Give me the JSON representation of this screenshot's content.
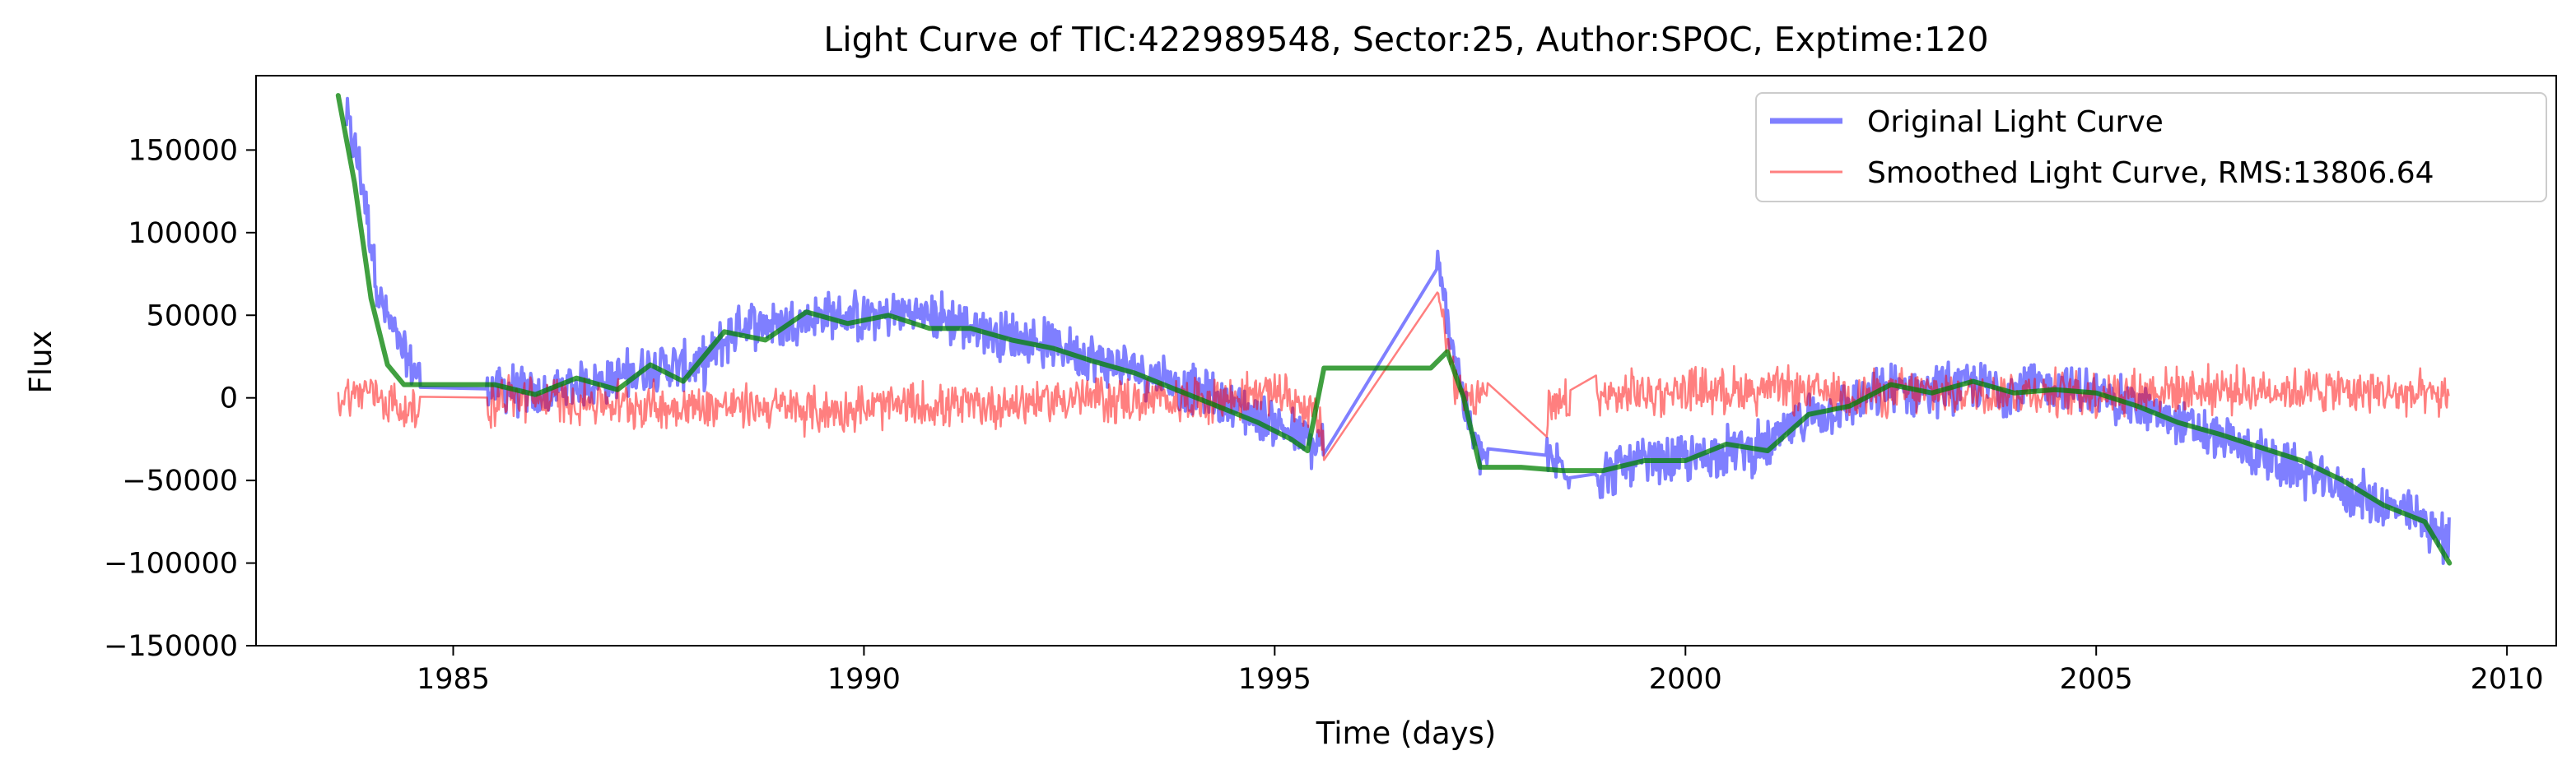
{
  "chart_data": {
    "type": "line",
    "title": "Light Curve of TIC:422989548, Sector:25, Author:SPOC, Exptime:120",
    "xlabel": "Time (days)",
    "ylabel": "Flux",
    "xlim": [
      1982.6,
      2010.6
    ],
    "ylim": [
      -150000,
      195000
    ],
    "x_ticks": [
      1985,
      1990,
      1995,
      2000,
      2005,
      2010
    ],
    "y_ticks": [
      -150000,
      -100000,
      -50000,
      0,
      50000,
      100000,
      150000
    ],
    "x_tick_labels": [
      "1985",
      "1990",
      "1995",
      "2000",
      "2005",
      "2010"
    ],
    "y_tick_labels": [
      "−150000",
      "−100000",
      "−50000",
      "0",
      "50000",
      "100000",
      "150000"
    ],
    "grid": false,
    "legend_position": "top-right",
    "series": [
      {
        "name": "Original Light Curve",
        "color": "#0000ff",
        "opacity": 0.5,
        "style": "noisy",
        "x": [
          1983.7,
          1983.9,
          1984.1,
          1984.4,
          1984.6,
          1985.0,
          1985.4,
          1985.8,
          1986.0,
          1986.5,
          1987.0,
          1987.5,
          1988.0,
          1988.5,
          1989.0,
          1989.5,
          1990.0,
          1990.5,
          1991.0,
          1991.5,
          1992.0,
          1992.5,
          1993.0,
          1993.5,
          1994.0,
          1994.5,
          1995.0,
          1995.5,
          1995.6,
          1996.97,
          1997.2,
          1997.4,
          1997.6,
          1998.0,
          1998.5,
          1998.9,
          1999.2,
          1999.5,
          2000.0,
          2000.5,
          2001.0,
          2001.5,
          2002.0,
          2002.5,
          2003.0,
          2003.5,
          2004.0,
          2004.5,
          2005.0,
          2005.5,
          2006.0,
          2006.5,
          2007.0,
          2007.5,
          2008.0,
          2008.5,
          2009.0,
          2009.3
        ],
        "y": [
          170000,
          130000,
          60000,
          25000,
          12000,
          8000,
          6000,
          5000,
          0,
          8000,
          12000,
          20000,
          18000,
          45000,
          45000,
          50000,
          48000,
          52000,
          48000,
          40000,
          35000,
          30000,
          20000,
          15000,
          5000,
          -5000,
          -15000,
          -30000,
          -25000,
          80000,
          25000,
          -25000,
          -38000,
          -38000,
          -40000,
          -48000,
          -42000,
          -40000,
          -38000,
          -32000,
          -30000,
          -10000,
          -5000,
          5000,
          5000,
          8000,
          5000,
          8000,
          2000,
          -5000,
          -15000,
          -25000,
          -35000,
          -45000,
          -55000,
          -65000,
          -75000,
          -88000
        ],
        "noise_amplitude": 18000
      },
      {
        "name": "Smoothed Light Curve, RMS:13806.64",
        "color": "#ff0000",
        "opacity": 0.5,
        "style": "noisy",
        "x": [
          1983.6,
          1984.0,
          1984.4,
          1985.4,
          1985.6,
          1986.5,
          1987.5,
          1988.5,
          1989.5,
          1990.5,
          1991.5,
          1992.5,
          1993.5,
          1994.5,
          1995.0,
          1995.5,
          1995.6,
          1996.97,
          1997.2,
          1997.5,
          1998.3,
          1998.5,
          1998.9,
          1999.0,
          2000.0,
          2001.0,
          2002.0,
          2003.0,
          2004.0,
          2005.0,
          2006.0,
          2007.0,
          2008.0,
          2009.3
        ],
        "y": [
          0,
          5000,
          -8000,
          -5000,
          0,
          -2000,
          -5000,
          -5000,
          -8000,
          -5000,
          -5000,
          0,
          -2000,
          0,
          5000,
          -10000,
          -30000,
          70000,
          5000,
          3000,
          -10000,
          -5000,
          0,
          0,
          5000,
          5000,
          3000,
          3000,
          3000,
          3000,
          5000,
          5000,
          5000,
          0
        ],
        "noise_amplitude": 17000
      },
      {
        "name": "",
        "color": "#008000",
        "opacity": 0.75,
        "style": "smooth",
        "x": [
          1983.6,
          1983.8,
          1984.0,
          1984.2,
          1984.4,
          1985.0,
          1985.5,
          1986.0,
          1986.5,
          1987.0,
          1987.4,
          1987.8,
          1988.3,
          1988.8,
          1989.3,
          1989.8,
          1990.3,
          1990.8,
          1991.3,
          1991.8,
          1992.3,
          1992.8,
          1993.3,
          1993.8,
          1994.3,
          1994.8,
          1995.2,
          1995.4,
          1995.6,
          1996.9,
          1997.1,
          1997.3,
          1997.5,
          1998.0,
          1998.5,
          1999.0,
          1999.5,
          2000.0,
          2000.5,
          2001.0,
          2001.5,
          2002.0,
          2002.5,
          2003.0,
          2003.5,
          2004.0,
          2004.5,
          2005.0,
          2005.5,
          2006.0,
          2006.5,
          2007.0,
          2007.5,
          2008.0,
          2008.5,
          2009.0,
          2009.3
        ],
        "y": [
          183000,
          130000,
          60000,
          20000,
          8000,
          8000,
          8000,
          2000,
          12000,
          5000,
          20000,
          10000,
          40000,
          35000,
          52000,
          45000,
          50000,
          42000,
          42000,
          35000,
          30000,
          22000,
          15000,
          5000,
          -5000,
          -15000,
          -25000,
          -32000,
          18000,
          18000,
          28000,
          0,
          -42000,
          -42000,
          -44000,
          -44000,
          -38000,
          -38000,
          -28000,
          -32000,
          -10000,
          -5000,
          8000,
          3000,
          10000,
          3000,
          5000,
          3000,
          -5000,
          -15000,
          -22000,
          -30000,
          -38000,
          -50000,
          -65000,
          -75000,
          -100000
        ]
      }
    ]
  }
}
